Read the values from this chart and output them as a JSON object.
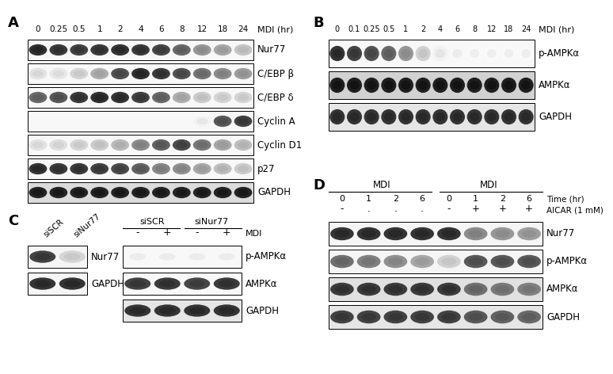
{
  "panel_A": {
    "label": "A",
    "time_points": [
      "0",
      "0.25",
      "0.5",
      "1",
      "2",
      "4",
      "6",
      "8",
      "12",
      "18",
      "24"
    ],
    "x_label": "MDI (hr)",
    "rows": [
      {
        "name": "Nur77",
        "intensities": [
          0.9,
          0.85,
          0.82,
          0.85,
          0.88,
          0.85,
          0.8,
          0.65,
          0.45,
          0.38,
          0.25
        ]
      },
      {
        "name": "C/EBP β",
        "intensities": [
          0.12,
          0.1,
          0.18,
          0.35,
          0.75,
          0.9,
          0.85,
          0.75,
          0.6,
          0.5,
          0.42
        ]
      },
      {
        "name": "C/EBP δ",
        "intensities": [
          0.65,
          0.72,
          0.85,
          0.9,
          0.88,
          0.82,
          0.65,
          0.35,
          0.22,
          0.18,
          0.18
        ]
      },
      {
        "name": "Cyclin A",
        "intensities": [
          0.0,
          0.0,
          0.0,
          0.0,
          0.0,
          0.0,
          0.0,
          0.0,
          0.05,
          0.72,
          0.82
        ]
      },
      {
        "name": "Cyclin D1",
        "intensities": [
          0.12,
          0.14,
          0.18,
          0.22,
          0.3,
          0.5,
          0.68,
          0.78,
          0.58,
          0.38,
          0.28
        ]
      },
      {
        "name": "p27",
        "intensities": [
          0.88,
          0.85,
          0.85,
          0.82,
          0.78,
          0.68,
          0.52,
          0.48,
          0.38,
          0.28,
          0.22
        ]
      },
      {
        "name": "GAPDH",
        "intensities": [
          0.95,
          0.95,
          0.95,
          0.95,
          0.95,
          0.95,
          0.95,
          0.95,
          0.95,
          0.95,
          0.95
        ]
      }
    ]
  },
  "panel_B": {
    "label": "B",
    "time_points": [
      "0",
      "0.1",
      "0.25",
      "0.5",
      "1",
      "2",
      "4",
      "6",
      "8",
      "12",
      "18",
      "24"
    ],
    "x_label": "MDI (hr)",
    "rows": [
      {
        "name": "p-AMPKα",
        "intensities": [
          0.88,
          0.82,
          0.75,
          0.65,
          0.45,
          0.2,
          0.06,
          0.03,
          0.02,
          0.02,
          0.02,
          0.02
        ]
      },
      {
        "name": "AMPKα",
        "intensities": [
          0.97,
          0.97,
          0.97,
          0.97,
          0.97,
          0.97,
          0.97,
          0.97,
          0.97,
          0.97,
          0.97,
          0.97
        ]
      },
      {
        "name": "GAPDH",
        "intensities": [
          0.88,
          0.88,
          0.88,
          0.88,
          0.88,
          0.88,
          0.88,
          0.88,
          0.88,
          0.88,
          0.88,
          0.88
        ]
      }
    ]
  },
  "panel_C_left": {
    "col_labels": [
      "siSCR",
      "siNur77"
    ],
    "rows": [
      {
        "name": "Nur77",
        "intensities": [
          0.82,
          0.18
        ]
      },
      {
        "name": "GAPDH",
        "intensities": [
          0.88,
          0.88
        ]
      }
    ]
  },
  "panel_C_right": {
    "group_labels": [
      "siSCR",
      "siNur77"
    ],
    "lane_labels": [
      "-",
      "+",
      "-",
      "+"
    ],
    "mdi_label": "MDI",
    "rows": [
      {
        "name": "p-AMPKα",
        "intensities": [
          0.03,
          0.03,
          0.03,
          0.03
        ]
      },
      {
        "name": "AMPKα",
        "intensities": [
          0.82,
          0.85,
          0.8,
          0.85
        ]
      },
      {
        "name": "GAPDH",
        "intensities": [
          0.88,
          0.88,
          0.88,
          0.88
        ]
      }
    ]
  },
  "panel_D": {
    "label": "D",
    "group_labels": [
      "MDI",
      "MDI"
    ],
    "time_points": [
      "0",
      "1",
      "2",
      "6",
      "0",
      "1",
      "2",
      "6"
    ],
    "time_label": "Time (hr)",
    "aicar_pm": [
      "-",
      ".",
      ".",
      ".",
      "-",
      "+",
      "+",
      "+"
    ],
    "aicar_label": "AICAR (1 mM)",
    "rows": [
      {
        "name": "Nur77",
        "intensities": [
          0.88,
          0.88,
          0.88,
          0.88,
          0.88,
          0.5,
          0.45,
          0.42
        ]
      },
      {
        "name": "p-AMPKα",
        "intensities": [
          0.62,
          0.55,
          0.48,
          0.38,
          0.2,
          0.72,
          0.72,
          0.72
        ]
      },
      {
        "name": "AMPKα",
        "intensities": [
          0.85,
          0.85,
          0.85,
          0.85,
          0.85,
          0.62,
          0.58,
          0.55
        ]
      },
      {
        "name": "GAPDH",
        "intensities": [
          0.82,
          0.82,
          0.82,
          0.82,
          0.82,
          0.72,
          0.68,
          0.65
        ]
      }
    ]
  },
  "fig_w": 7.74,
  "fig_h": 4.72,
  "dpi": 100
}
